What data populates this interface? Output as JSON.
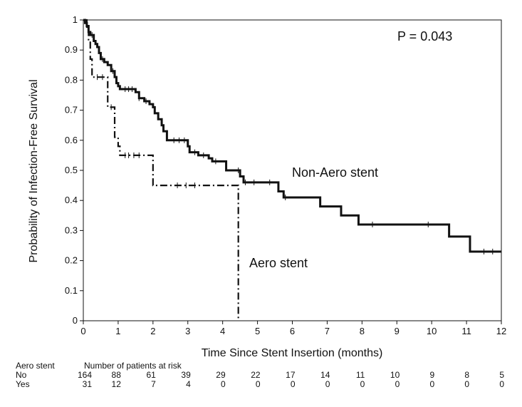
{
  "chart_data": {
    "type": "line",
    "title": "",
    "xlabel": "Time Since Stent Insertion (months)",
    "ylabel": "Probability of Infection-Free Survival",
    "xlim": [
      0,
      12
    ],
    "ylim": [
      0,
      1
    ],
    "x_ticks": [
      0,
      1,
      2,
      3,
      4,
      5,
      6,
      7,
      8,
      9,
      10,
      11,
      12
    ],
    "y_ticks": [
      0,
      0.1,
      0.2,
      0.3,
      0.4,
      0.5,
      0.6,
      0.7,
      0.8,
      0.9,
      1
    ],
    "y_tick_labels": [
      "0",
      "0.1",
      "0.2",
      "0.3",
      "0.4",
      "0.5",
      "0.6",
      "0.7",
      "0.8",
      "0.9",
      "1"
    ],
    "x_tick_labels": [
      "0",
      "1",
      "2",
      "3",
      "4",
      "5",
      "6",
      "7",
      "8",
      "9",
      "10",
      "11",
      "12"
    ],
    "grid": false,
    "p_value_text": "P = 0.043",
    "series": [
      {
        "name": "Non-Aero stent",
        "style": "solid",
        "color": "#111111",
        "steps": [
          [
            0,
            1
          ],
          [
            0.05,
            0.99
          ],
          [
            0.1,
            0.98
          ],
          [
            0.15,
            0.96
          ],
          [
            0.2,
            0.95
          ],
          [
            0.3,
            0.93
          ],
          [
            0.35,
            0.92
          ],
          [
            0.4,
            0.91
          ],
          [
            0.45,
            0.89
          ],
          [
            0.5,
            0.87
          ],
          [
            0.6,
            0.86
          ],
          [
            0.7,
            0.85
          ],
          [
            0.8,
            0.83
          ],
          [
            0.9,
            0.81
          ],
          [
            0.95,
            0.79
          ],
          [
            1.0,
            0.78
          ],
          [
            1.05,
            0.77
          ],
          [
            1.5,
            0.76
          ],
          [
            1.6,
            0.74
          ],
          [
            1.75,
            0.73
          ],
          [
            1.9,
            0.72
          ],
          [
            2.0,
            0.71
          ],
          [
            2.05,
            0.69
          ],
          [
            2.15,
            0.67
          ],
          [
            2.25,
            0.65
          ],
          [
            2.3,
            0.63
          ],
          [
            2.4,
            0.6
          ],
          [
            3.0,
            0.58
          ],
          [
            3.05,
            0.56
          ],
          [
            3.3,
            0.55
          ],
          [
            3.6,
            0.54
          ],
          [
            3.7,
            0.53
          ],
          [
            4.1,
            0.5
          ],
          [
            4.5,
            0.48
          ],
          [
            4.6,
            0.46
          ],
          [
            5.6,
            0.43
          ],
          [
            5.75,
            0.41
          ],
          [
            6.8,
            0.38
          ],
          [
            7.4,
            0.35
          ],
          [
            7.9,
            0.32
          ],
          [
            10.5,
            0.28
          ],
          [
            11.1,
            0.23
          ],
          [
            12,
            0.23
          ]
        ],
        "censor_x": [
          0.25,
          0.55,
          0.85,
          1.2,
          1.3,
          1.4,
          1.6,
          1.8,
          2.6,
          2.75,
          2.9,
          3.2,
          3.45,
          3.8,
          4.45,
          4.65,
          4.9,
          5.35,
          5.8,
          8.3,
          9.9,
          11.5,
          11.75
        ]
      },
      {
        "name": "Aero stent",
        "style": "dashdot",
        "color": "#111111",
        "steps": [
          [
            0,
            1
          ],
          [
            0.1,
            0.97
          ],
          [
            0.15,
            0.93
          ],
          [
            0.2,
            0.87
          ],
          [
            0.25,
            0.81
          ],
          [
            0.7,
            0.71
          ],
          [
            0.9,
            0.61
          ],
          [
            1.0,
            0.58
          ],
          [
            1.05,
            0.55
          ],
          [
            2.0,
            0.45
          ],
          [
            4.45,
            0.45
          ],
          [
            4.45,
            0
          ]
        ],
        "censor_x": [
          0.4,
          0.55,
          0.8,
          1.2,
          1.3,
          1.45,
          1.6,
          2.7,
          2.95,
          3.2
        ]
      }
    ],
    "risk_table": {
      "group_header": "Aero stent",
      "title": "Number of patients at risk",
      "times": [
        0,
        1,
        2,
        3,
        4,
        5,
        6,
        7,
        8,
        9,
        10,
        11,
        12
      ],
      "rows": [
        {
          "label": "No",
          "counts": [
            "164",
            "88",
            "61",
            "39",
            "29",
            "22",
            "17",
            "14",
            "11",
            "10",
            "9",
            "8",
            "5"
          ]
        },
        {
          "label": "Yes",
          "counts": [
            "31",
            "12",
            "7",
            "4",
            "0",
            "0",
            "0",
            "0",
            "0",
            "0",
            "0",
            "0",
            "0"
          ]
        }
      ]
    }
  }
}
